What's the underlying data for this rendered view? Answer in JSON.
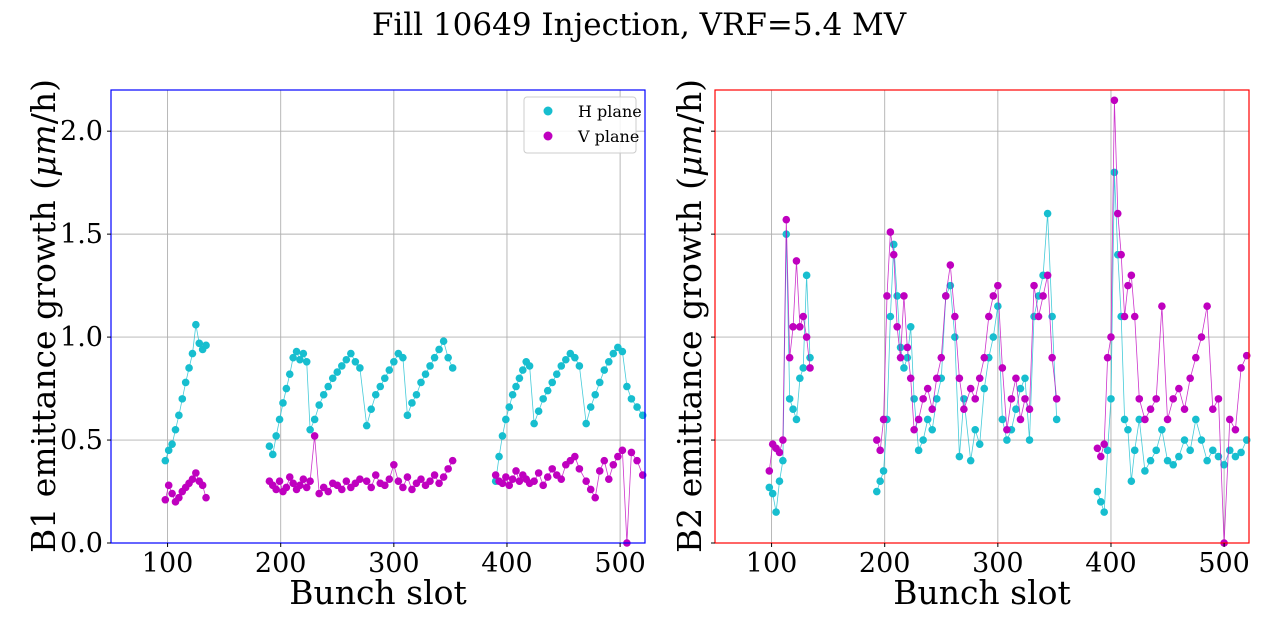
{
  "figure": {
    "title": "Fill 10649 Injection, VRF=5.4 MV"
  },
  "colors": {
    "h_plane": "#17becf",
    "v_plane": "#bf00bf",
    "b1_frame": "#0000ff",
    "b2_frame": "#ff0000",
    "grid": "#b0b0b0"
  },
  "legend": {
    "placement": "upper right of left panel",
    "entries": [
      "H plane",
      "V plane"
    ]
  },
  "chart_data": [
    {
      "type": "scatter",
      "panel": "B1",
      "title": "",
      "xlabel": "Bunch slot",
      "ylabel_parts": [
        "B1 emittance growth (",
        "μm",
        "/h)"
      ],
      "xlim": [
        50,
        522
      ],
      "ylim": [
        0,
        2.2
      ],
      "xticks": [
        100,
        200,
        300,
        400,
        500
      ],
      "yticks": [
        0.0,
        0.5,
        1.0,
        1.5,
        2.0
      ],
      "ytick_labels": [
        "0.0",
        "0.5",
        "1.0",
        "1.5",
        "2.0"
      ],
      "grid": true,
      "series": [
        {
          "name": "H plane",
          "x": [
            98,
            101,
            104,
            107,
            110,
            113,
            116,
            119,
            122,
            125,
            128,
            131,
            134,
            190,
            193,
            196,
            199,
            202,
            205,
            208,
            211,
            214,
            217,
            220,
            223,
            226,
            230,
            234,
            238,
            242,
            246,
            250,
            254,
            258,
            262,
            266,
            270,
            276,
            280,
            284,
            288,
            292,
            296,
            300,
            304,
            308,
            312,
            316,
            320,
            324,
            328,
            332,
            336,
            340,
            344,
            348,
            352,
            390,
            393,
            396,
            399,
            402,
            405,
            408,
            411,
            414,
            417,
            420,
            424,
            428,
            432,
            436,
            440,
            444,
            448,
            452,
            456,
            460,
            464,
            470,
            474,
            478,
            482,
            486,
            490,
            494,
            498,
            502,
            506,
            510,
            515,
            520
          ],
          "y": [
            0.4,
            0.45,
            0.48,
            0.55,
            0.62,
            0.7,
            0.78,
            0.85,
            0.92,
            1.06,
            0.97,
            0.94,
            0.96,
            0.47,
            0.43,
            0.52,
            0.6,
            0.68,
            0.75,
            0.82,
            0.9,
            0.93,
            0.89,
            0.92,
            0.88,
            0.55,
            0.6,
            0.67,
            0.72,
            0.76,
            0.8,
            0.83,
            0.86,
            0.89,
            0.92,
            0.88,
            0.85,
            0.57,
            0.65,
            0.72,
            0.76,
            0.8,
            0.84,
            0.88,
            0.92,
            0.9,
            0.62,
            0.68,
            0.72,
            0.78,
            0.82,
            0.86,
            0.9,
            0.94,
            0.98,
            0.9,
            0.85,
            0.3,
            0.42,
            0.52,
            0.6,
            0.66,
            0.72,
            0.76,
            0.8,
            0.84,
            0.88,
            0.86,
            0.58,
            0.64,
            0.7,
            0.74,
            0.78,
            0.82,
            0.86,
            0.89,
            0.92,
            0.9,
            0.86,
            0.58,
            0.66,
            0.72,
            0.78,
            0.84,
            0.88,
            0.92,
            0.95,
            0.93,
            0.76,
            0.7,
            0.66,
            0.62
          ]
        },
        {
          "name": "V plane",
          "x": [
            98,
            101,
            104,
            107,
            110,
            113,
            116,
            119,
            122,
            125,
            128,
            131,
            134,
            190,
            193,
            196,
            199,
            202,
            205,
            208,
            211,
            214,
            217,
            220,
            223,
            226,
            230,
            234,
            238,
            242,
            246,
            250,
            254,
            258,
            262,
            266,
            270,
            276,
            280,
            284,
            288,
            292,
            296,
            300,
            304,
            308,
            312,
            316,
            320,
            324,
            328,
            332,
            336,
            340,
            344,
            348,
            352,
            390,
            393,
            396,
            399,
            402,
            405,
            408,
            411,
            414,
            417,
            420,
            424,
            428,
            432,
            436,
            440,
            444,
            448,
            452,
            456,
            460,
            464,
            470,
            474,
            478,
            482,
            486,
            490,
            494,
            498,
            502,
            506,
            510,
            515,
            520
          ],
          "y": [
            0.21,
            0.28,
            0.24,
            0.2,
            0.22,
            0.25,
            0.27,
            0.29,
            0.31,
            0.34,
            0.3,
            0.28,
            0.22,
            0.3,
            0.28,
            0.26,
            0.3,
            0.25,
            0.27,
            0.32,
            0.29,
            0.26,
            0.28,
            0.31,
            0.27,
            0.3,
            0.52,
            0.24,
            0.27,
            0.25,
            0.29,
            0.28,
            0.26,
            0.3,
            0.27,
            0.29,
            0.31,
            0.3,
            0.27,
            0.33,
            0.29,
            0.28,
            0.31,
            0.38,
            0.3,
            0.27,
            0.32,
            0.26,
            0.29,
            0.31,
            0.28,
            0.3,
            0.33,
            0.29,
            0.32,
            0.36,
            0.4,
            0.33,
            0.3,
            0.29,
            0.32,
            0.28,
            0.31,
            0.35,
            0.3,
            0.33,
            0.31,
            0.29,
            0.3,
            0.34,
            0.28,
            0.32,
            0.36,
            0.33,
            0.31,
            0.38,
            0.4,
            0.42,
            0.36,
            0.3,
            0.26,
            0.22,
            0.35,
            0.4,
            0.31,
            0.38,
            0.42,
            0.45,
            0.0,
            0.44,
            0.4,
            0.33
          ]
        }
      ]
    },
    {
      "type": "scatter",
      "panel": "B2",
      "title": "",
      "xlabel": "Bunch slot",
      "ylabel_parts": [
        "B2 emittance growth (",
        "μm",
        "/h)"
      ],
      "xlim": [
        50,
        522
      ],
      "ylim": [
        0,
        2.2
      ],
      "xticks": [
        100,
        200,
        300,
        400,
        500
      ],
      "yticks": [
        0.0,
        0.5,
        1.0,
        1.5,
        2.0
      ],
      "ytick_labels": [
        "",
        "",
        "",
        "",
        ""
      ],
      "grid": true,
      "series": [
        {
          "name": "H plane",
          "x": [
            98,
            101,
            104,
            107,
            110,
            113,
            116,
            119,
            122,
            125,
            128,
            131,
            134,
            193,
            196,
            199,
            202,
            205,
            208,
            211,
            214,
            217,
            220,
            223,
            226,
            230,
            234,
            238,
            242,
            246,
            250,
            254,
            258,
            262,
            266,
            270,
            276,
            280,
            284,
            288,
            292,
            296,
            300,
            304,
            308,
            312,
            316,
            320,
            324,
            328,
            332,
            336,
            340,
            344,
            348,
            352,
            388,
            391,
            394,
            397,
            400,
            403,
            406,
            409,
            412,
            415,
            418,
            421,
            425,
            430,
            435,
            440,
            445,
            450,
            455,
            460,
            465,
            470,
            475,
            480,
            485,
            490,
            495,
            500,
            505,
            510,
            515,
            520
          ],
          "y": [
            0.27,
            0.24,
            0.15,
            0.3,
            0.4,
            1.5,
            0.7,
            0.65,
            0.6,
            0.8,
            0.85,
            1.3,
            0.9,
            0.25,
            0.3,
            0.35,
            0.6,
            1.1,
            1.45,
            1.2,
            0.95,
            0.85,
            0.9,
            1.05,
            0.7,
            0.45,
            0.5,
            0.6,
            0.55,
            0.7,
            0.8,
            1.2,
            1.25,
            1.0,
            0.42,
            0.7,
            0.4,
            0.55,
            0.48,
            0.75,
            0.9,
            1.0,
            1.15,
            0.6,
            0.5,
            0.55,
            0.65,
            0.75,
            0.8,
            0.5,
            1.1,
            1.2,
            1.3,
            1.6,
            1.1,
            0.6,
            0.25,
            0.2,
            0.15,
            0.45,
            0.7,
            1.8,
            1.4,
            1.1,
            0.6,
            0.55,
            0.3,
            0.45,
            0.6,
            0.35,
            0.4,
            0.45,
            0.55,
            0.4,
            0.38,
            0.42,
            0.5,
            0.45,
            0.6,
            0.5,
            0.4,
            0.45,
            0.42,
            0.38,
            0.45,
            0.42,
            0.44,
            0.5
          ]
        },
        {
          "name": "V plane",
          "x": [
            98,
            101,
            104,
            107,
            110,
            113,
            116,
            119,
            122,
            125,
            128,
            131,
            134,
            193,
            196,
            199,
            202,
            205,
            208,
            211,
            214,
            217,
            220,
            223,
            226,
            230,
            234,
            238,
            242,
            246,
            250,
            254,
            258,
            262,
            266,
            270,
            276,
            280,
            284,
            288,
            292,
            296,
            300,
            304,
            308,
            312,
            316,
            320,
            324,
            328,
            332,
            336,
            340,
            344,
            348,
            352,
            388,
            391,
            394,
            397,
            400,
            403,
            406,
            409,
            412,
            415,
            418,
            421,
            425,
            430,
            435,
            440,
            445,
            450,
            455,
            460,
            465,
            470,
            475,
            480,
            485,
            490,
            495,
            500,
            505,
            510,
            515,
            520
          ],
          "y": [
            0.35,
            0.48,
            0.46,
            0.44,
            0.5,
            1.57,
            0.9,
            1.05,
            1.37,
            1.05,
            1.1,
            1.0,
            0.85,
            0.5,
            0.45,
            0.6,
            1.2,
            1.51,
            1.4,
            1.05,
            0.9,
            1.2,
            0.95,
            0.8,
            0.55,
            0.6,
            0.7,
            0.75,
            0.65,
            0.8,
            0.9,
            1.2,
            1.35,
            1.1,
            0.8,
            0.65,
            0.75,
            0.7,
            0.8,
            0.9,
            1.1,
            1.2,
            1.25,
            0.85,
            0.55,
            0.7,
            0.8,
            0.6,
            0.7,
            0.65,
            1.25,
            1.1,
            1.2,
            1.3,
            0.9,
            0.7,
            0.46,
            0.42,
            0.48,
            0.9,
            1.0,
            2.15,
            1.6,
            1.4,
            1.1,
            1.25,
            1.3,
            1.1,
            0.7,
            0.6,
            0.65,
            0.7,
            1.15,
            0.6,
            0.7,
            0.75,
            0.65,
            0.8,
            0.9,
            1.0,
            1.15,
            0.65,
            0.7,
            0.0,
            0.6,
            0.55,
            0.85,
            0.91
          ]
        }
      ]
    }
  ]
}
